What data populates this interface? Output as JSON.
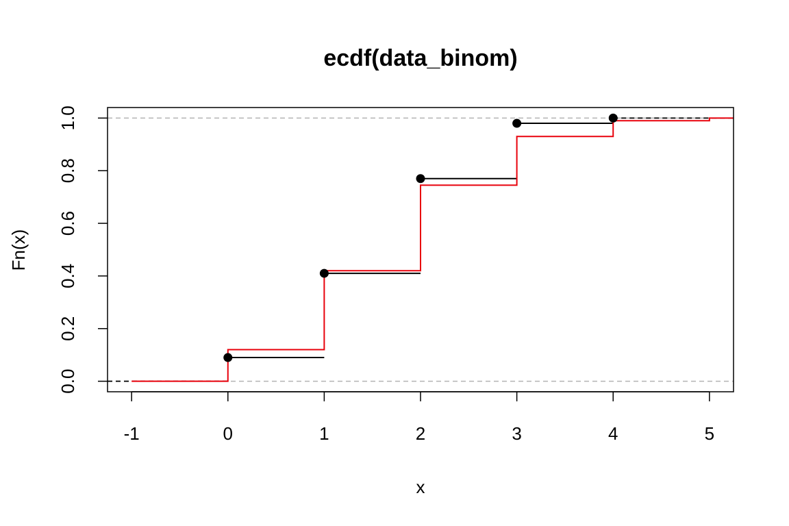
{
  "chart_data": {
    "type": "line",
    "title": "ecdf(data_binom)",
    "xlabel": "x",
    "ylabel": "Fn(x)",
    "xlim": [
      -1.25,
      5.25
    ],
    "ylim": [
      -0.04,
      1.04
    ],
    "x_ticks": [
      "-1",
      "0",
      "1",
      "2",
      "3",
      "4",
      "5"
    ],
    "y_ticks": [
      "0.0",
      "0.2",
      "0.4",
      "0.6",
      "0.8",
      "1.0"
    ],
    "reference_lines_y": [
      0,
      1
    ],
    "series": [
      {
        "style": "step with points",
        "color": "#000000",
        "x": [
          0,
          1,
          2,
          3,
          4
        ],
        "y": [
          0.09,
          0.41,
          0.77,
          0.98,
          1.0
        ]
      },
      {
        "style": "step",
        "color": "#e8000b",
        "x": [
          -1,
          0,
          1,
          2,
          3,
          4,
          5
        ],
        "y": [
          0.0,
          0.12,
          0.42,
          0.745,
          0.93,
          0.99,
          1.0
        ]
      }
    ]
  }
}
